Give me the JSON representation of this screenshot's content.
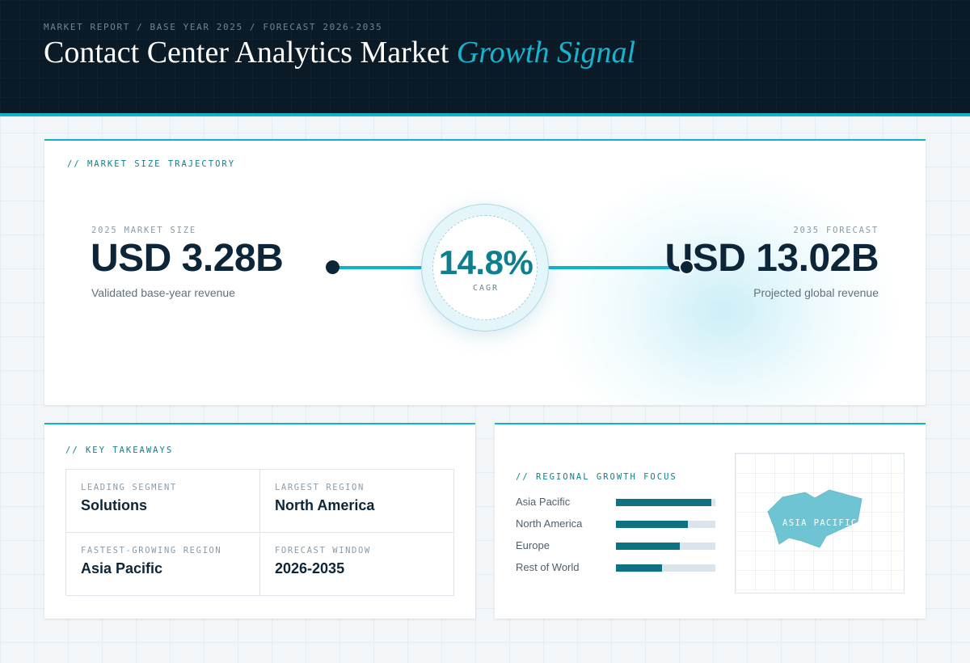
{
  "header": {
    "breadcrumb": "MARKET REPORT / BASE YEAR 2025 / FORECAST 2026-2035",
    "title_main": "Contact Center Analytics Market",
    "title_accent": "Growth Signal"
  },
  "trajectory": {
    "section_label": "// MARKET SIZE TRAJECTORY",
    "start": {
      "kicker": "2025 MARKET SIZE",
      "value": "USD 3.28B",
      "caption": "Validated base-year revenue"
    },
    "end": {
      "kicker": "2035 FORECAST",
      "value": "USD 13.02B",
      "caption": "Projected global revenue"
    },
    "cagr": {
      "value": "14.8%",
      "label": "CAGR"
    }
  },
  "takeaways": {
    "section_label": "// KEY TAKEAWAYS",
    "items": [
      {
        "kicker": "LEADING SEGMENT",
        "value": "Solutions"
      },
      {
        "kicker": "LARGEST REGION",
        "value": "North America"
      },
      {
        "kicker": "FASTEST-GROWING REGION",
        "value": "Asia Pacific"
      },
      {
        "kicker": "FORECAST WINDOW",
        "value": "2026-2035"
      }
    ]
  },
  "regional": {
    "section_label": "// REGIONAL GROWTH FOCUS",
    "bars": [
      {
        "label": "Asia Pacific",
        "fraction": 0.96
      },
      {
        "label": "North America",
        "fraction": 0.72
      },
      {
        "label": "Europe",
        "fraction": 0.64
      },
      {
        "label": "Rest of World",
        "fraction": 0.46
      }
    ],
    "map_label": "ASIA PACIFIC"
  },
  "colors": {
    "accent": "#10b3cd",
    "teal": "#0e7283",
    "navy": "#0a1a27",
    "map_fill": "#6fc4d3"
  }
}
